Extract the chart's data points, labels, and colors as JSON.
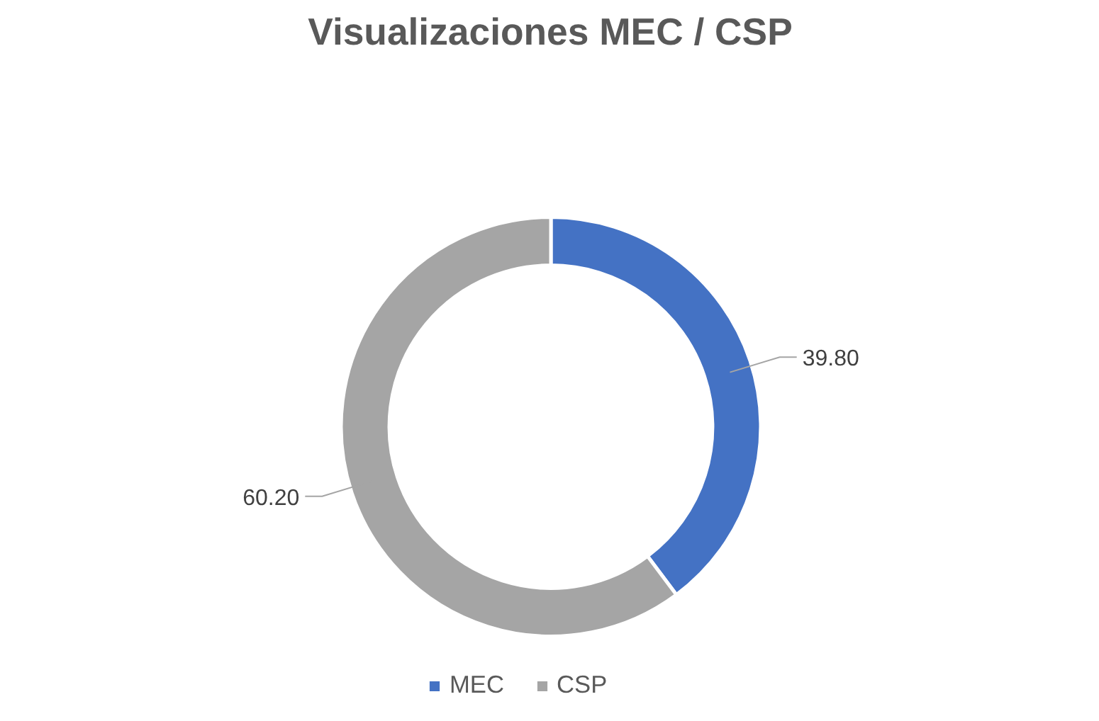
{
  "chart_data": {
    "type": "donut",
    "title": "Visualizaciones MEC / CSP",
    "categories": [
      "MEC",
      "CSP"
    ],
    "values": [
      39.8,
      60.2
    ],
    "value_labels": [
      "39.80",
      "60.20"
    ],
    "colors": [
      "#4472c4",
      "#a5a5a5"
    ],
    "legend": "bottom"
  }
}
